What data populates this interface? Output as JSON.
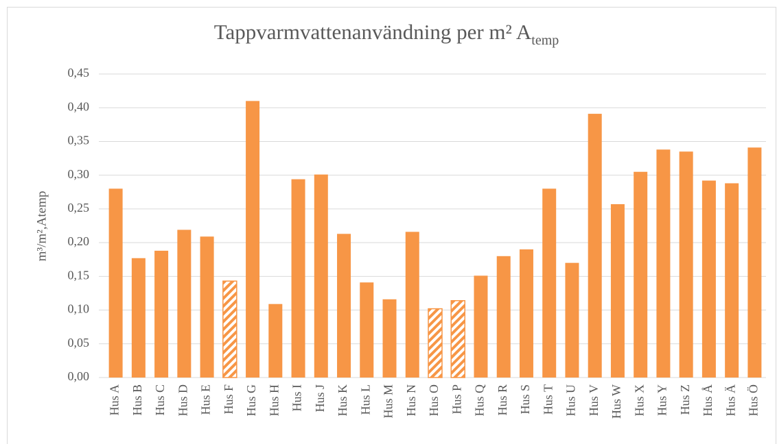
{
  "chart_data": {
    "type": "bar",
    "title": "Tappvarmvattenanvändning per m² A",
    "title_subscript": "temp",
    "ylabel": "m³/m²,Atemp",
    "categories": [
      "Hus A",
      "Hus B",
      "Hus C",
      "Hus D",
      "Hus E",
      "Hus F",
      "Hus G",
      "Hus H",
      "Hus I",
      "Hus J",
      "Hus K",
      "Hus L",
      "Hus M",
      "Hus N",
      "Hus O",
      "Hus P",
      "Hus Q",
      "Hus R",
      "Hus S",
      "Hus T",
      "Hus U",
      "Hus V",
      "Hus W",
      "Hus X",
      "Hus Y",
      "Hus Z",
      "Hus Å",
      "Hus Ä",
      "Hus Ö"
    ],
    "values": [
      0.28,
      0.177,
      0.188,
      0.219,
      0.209,
      0.143,
      0.41,
      0.109,
      0.294,
      0.301,
      0.213,
      0.141,
      0.116,
      0.216,
      0.102,
      0.114,
      0.151,
      0.18,
      0.19,
      0.28,
      0.17,
      0.391,
      0.257,
      0.305,
      0.338,
      0.335,
      0.292,
      0.288,
      0.341
    ],
    "bar_styles": [
      "solid",
      "solid",
      "solid",
      "solid",
      "solid",
      "hatched",
      "solid",
      "solid",
      "solid",
      "solid",
      "solid",
      "solid",
      "solid",
      "solid",
      "hatched",
      "hatched",
      "solid",
      "solid",
      "solid",
      "solid",
      "solid",
      "solid",
      "solid",
      "solid",
      "solid",
      "solid",
      "solid",
      "solid",
      "solid"
    ],
    "color": "#f79646",
    "ylim": [
      0,
      0.45
    ],
    "yticks": [
      {
        "value": 0,
        "label": "0,00"
      },
      {
        "value": 0.05,
        "label": "0,05"
      },
      {
        "value": 0.1,
        "label": "0,10"
      },
      {
        "value": 0.15,
        "label": "0,15"
      },
      {
        "value": 0.2,
        "label": "0,20"
      },
      {
        "value": 0.25,
        "label": "0,25"
      },
      {
        "value": 0.3,
        "label": "0,30"
      },
      {
        "value": 0.35,
        "label": "0,35"
      },
      {
        "value": 0.4,
        "label": "0,40"
      },
      {
        "value": 0.45,
        "label": "0,45"
      }
    ],
    "grid": true
  }
}
